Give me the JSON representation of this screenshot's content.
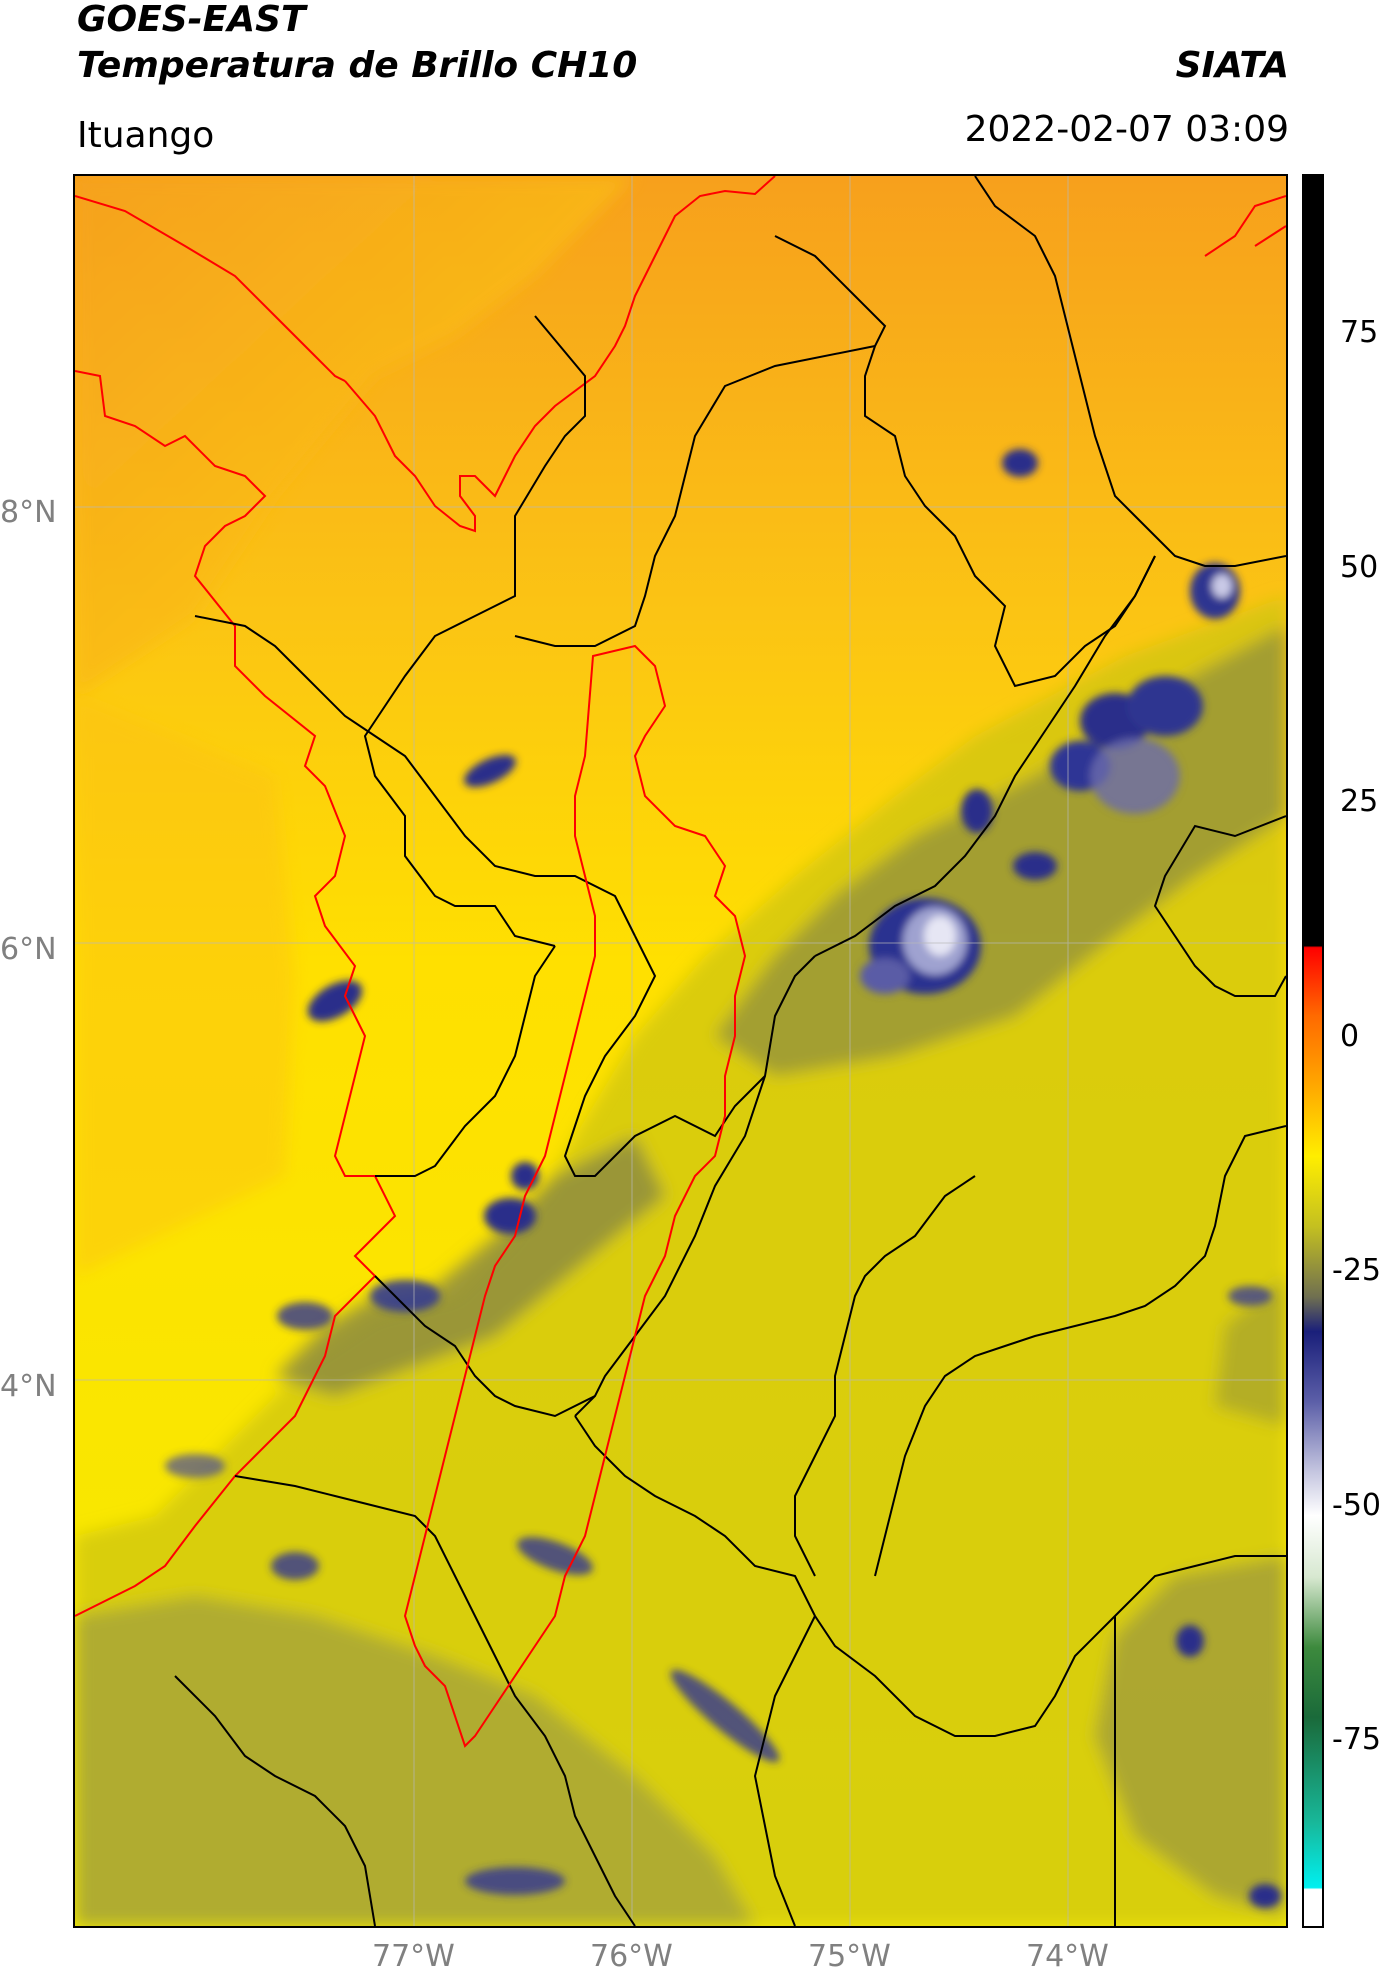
{
  "header": {
    "satellite": "GOES-EAST",
    "product": "Temperatura de Brillo CH10",
    "organization": "SIATA",
    "location": "Ituango",
    "datetime": "2022-02-07 03:09"
  },
  "map": {
    "lat_labels": [
      "8°N",
      "6°N",
      "4°N"
    ],
    "lon_labels": [
      "77°W",
      "76°W",
      "75°W",
      "74°W"
    ],
    "lat_range": [
      1.4,
      9.5
    ],
    "lon_range": [
      -78.55,
      -73.0
    ],
    "gridlines": true,
    "colors": {
      "warm_sea": "#f6a21e",
      "warm_land": "#ffe400",
      "cloud_mid": "#a8a62c",
      "cloud_deep": "#2a2f8a",
      "coast": "#ff0000",
      "borders": "#000000"
    }
  },
  "colorbar": {
    "ticks": [
      "75",
      "50",
      "25",
      "0",
      "-25",
      "-50",
      "-75"
    ],
    "tick_values": [
      75,
      50,
      25,
      0,
      -25,
      -50,
      -75
    ],
    "range": [
      -95,
      92
    ]
  }
}
